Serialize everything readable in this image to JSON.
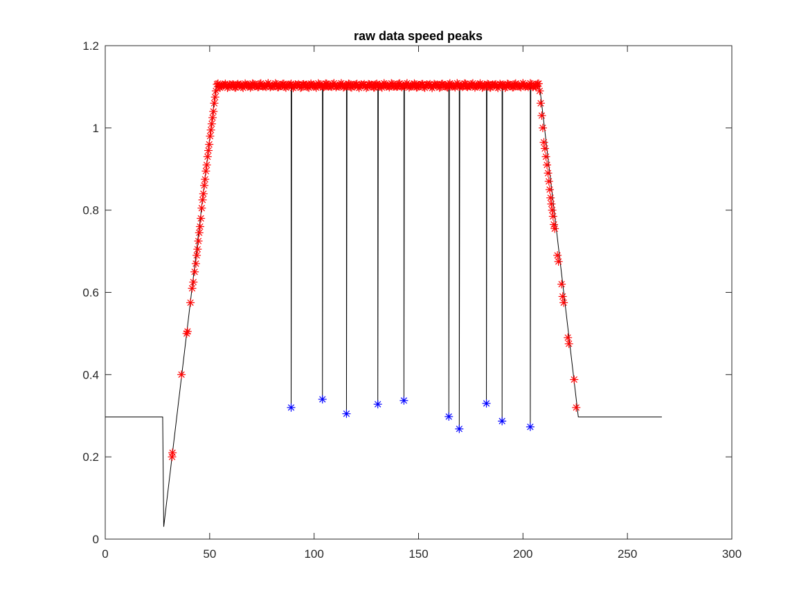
{
  "chart_data": {
    "type": "line",
    "title": "raw data speed peaks",
    "xlabel": "",
    "ylabel": "",
    "xlim": [
      0,
      300
    ],
    "ylim": [
      0,
      1.2
    ],
    "xticks": [
      0,
      50,
      100,
      150,
      200,
      250,
      300
    ],
    "yticks": [
      0,
      0.2,
      0.4,
      0.6,
      0.8,
      1,
      1.2
    ],
    "xtick_labels": [
      "0",
      "50",
      "100",
      "150",
      "200",
      "250",
      "300"
    ],
    "ytick_labels": [
      "0",
      "0.2",
      "0.4",
      "0.6",
      "0.8",
      "1",
      "1.2"
    ],
    "grid": false,
    "legend": "none",
    "line_color": "#000000",
    "peak_marker_color": "#ff0000",
    "trough_marker_color": "#0000ff",
    "marker": "asterisk",
    "baseline_start": {
      "x": [
        0,
        27.5
      ],
      "y": [
        0.297,
        0.297
      ]
    },
    "dip": {
      "x": 28,
      "y": 0.03
    },
    "ramp_up": {
      "x_start": 28,
      "y_start": 0.03,
      "x_end": 53,
      "y_end": 1.1
    },
    "plateau": {
      "x_start": 53,
      "x_end": 208,
      "y": 1.103
    },
    "ramp_down": {
      "x_start": 208,
      "y_start": 1.1,
      "x_end": 226.5,
      "y_end": 0.297
    },
    "baseline_end": {
      "x": [
        226.5,
        266.5
      ],
      "y": [
        0.297,
        0.297
      ]
    },
    "troughs": [
      {
        "x": 89,
        "y": 0.32
      },
      {
        "x": 104,
        "y": 0.34
      },
      {
        "x": 115.5,
        "y": 0.305
      },
      {
        "x": 130.5,
        "y": 0.328
      },
      {
        "x": 143,
        "y": 0.337
      },
      {
        "x": 164.5,
        "y": 0.298
      },
      {
        "x": 169.5,
        "y": 0.268
      },
      {
        "x": 182.5,
        "y": 0.33
      },
      {
        "x": 190,
        "y": 0.287
      },
      {
        "x": 203.5,
        "y": 0.273
      }
    ],
    "rising_peaks": [
      {
        "x": 32,
        "y": 0.2
      },
      {
        "x": 32.2,
        "y": 0.21
      },
      {
        "x": 36.5,
        "y": 0.4
      },
      {
        "x": 39,
        "y": 0.5
      },
      {
        "x": 39.4,
        "y": 0.505
      },
      {
        "x": 40.8,
        "y": 0.575
      },
      {
        "x": 41.6,
        "y": 0.61
      },
      {
        "x": 42.2,
        "y": 0.625
      },
      {
        "x": 42.8,
        "y": 0.65
      },
      {
        "x": 43.4,
        "y": 0.67
      },
      {
        "x": 43.8,
        "y": 0.69
      },
      {
        "x": 44.2,
        "y": 0.705
      },
      {
        "x": 44.6,
        "y": 0.725
      },
      {
        "x": 45,
        "y": 0.745
      },
      {
        "x": 45.4,
        "y": 0.76
      },
      {
        "x": 45.8,
        "y": 0.78
      },
      {
        "x": 46.2,
        "y": 0.805
      },
      {
        "x": 46.6,
        "y": 0.825
      },
      {
        "x": 47,
        "y": 0.84
      },
      {
        "x": 47.4,
        "y": 0.86
      },
      {
        "x": 47.8,
        "y": 0.875
      },
      {
        "x": 48.2,
        "y": 0.895
      },
      {
        "x": 48.6,
        "y": 0.91
      },
      {
        "x": 49,
        "y": 0.93
      },
      {
        "x": 49.4,
        "y": 0.945
      },
      {
        "x": 49.8,
        "y": 0.96
      },
      {
        "x": 50.2,
        "y": 0.98
      },
      {
        "x": 50.6,
        "y": 0.995
      },
      {
        "x": 51,
        "y": 1.01
      },
      {
        "x": 51.4,
        "y": 1.025
      },
      {
        "x": 51.8,
        "y": 1.04
      },
      {
        "x": 52.2,
        "y": 1.06
      },
      {
        "x": 52.6,
        "y": 1.075
      },
      {
        "x": 53,
        "y": 1.09
      }
    ],
    "plateau_peaks": {
      "x_start": 53.5,
      "x_end": 207.5,
      "step": 0.5,
      "y_base": 1.103,
      "y_jitter": 0.006
    },
    "falling_peaks": [
      {
        "x": 208,
        "y": 1.09
      },
      {
        "x": 208.5,
        "y": 1.06
      },
      {
        "x": 209,
        "y": 1.03
      },
      {
        "x": 209.5,
        "y": 1.0
      },
      {
        "x": 210,
        "y": 0.965
      },
      {
        "x": 210.5,
        "y": 0.95
      },
      {
        "x": 211,
        "y": 0.93
      },
      {
        "x": 211.5,
        "y": 0.91
      },
      {
        "x": 212,
        "y": 0.89
      },
      {
        "x": 212.4,
        "y": 0.87
      },
      {
        "x": 212.8,
        "y": 0.85
      },
      {
        "x": 213.2,
        "y": 0.83
      },
      {
        "x": 213.6,
        "y": 0.815
      },
      {
        "x": 214,
        "y": 0.8
      },
      {
        "x": 214.4,
        "y": 0.785
      },
      {
        "x": 214.8,
        "y": 0.765
      },
      {
        "x": 215.2,
        "y": 0.755
      },
      {
        "x": 216.5,
        "y": 0.69
      },
      {
        "x": 217,
        "y": 0.675
      },
      {
        "x": 218.5,
        "y": 0.62
      },
      {
        "x": 219,
        "y": 0.59
      },
      {
        "x": 219.5,
        "y": 0.575
      },
      {
        "x": 221.5,
        "y": 0.49
      },
      {
        "x": 222,
        "y": 0.475
      },
      {
        "x": 224.5,
        "y": 0.388
      },
      {
        "x": 225.5,
        "y": 0.32
      }
    ]
  }
}
